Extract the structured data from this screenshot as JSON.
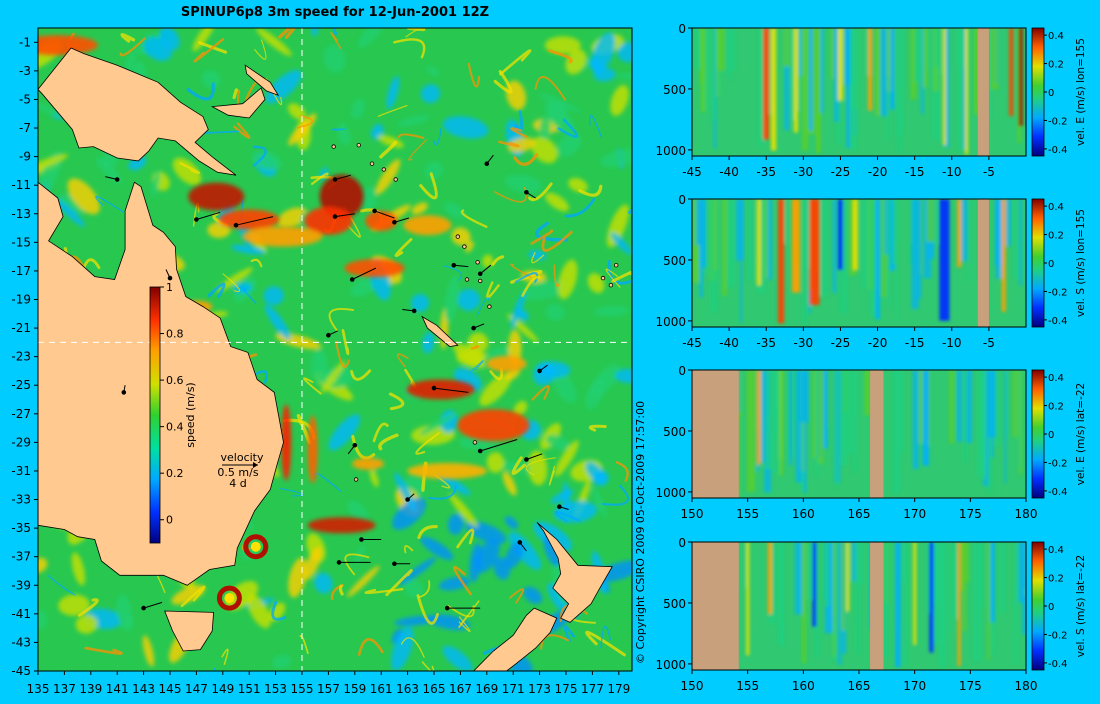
{
  "page": {
    "title": "SPINUP6p8 3m speed for 12-Jun-2001 12Z",
    "copyright": "© Copyright CSIRO 2009  05-Oct-2009 17:57:00",
    "colors": {
      "background": "#00ccff",
      "land": "#ffc98f",
      "section_land": "#c9a07c",
      "guide_lines": "#ffffff"
    }
  },
  "chart_data": [
    {
      "type": "heatmap",
      "id": "map",
      "title": "SPINUP6p8 3m speed for 12-Jun-2001 12Z",
      "x_ticks": [
        "135",
        "137",
        "139",
        "141",
        "143",
        "145",
        "147",
        "149",
        "151",
        "153",
        "155",
        "157",
        "159",
        "161",
        "163",
        "165",
        "167",
        "169",
        "171",
        "173",
        "175",
        "177",
        "179"
      ],
      "y_ticks": [
        "-1",
        "-3",
        "-5",
        "-7",
        "-9",
        "-11",
        "-13",
        "-15",
        "-17",
        "-19",
        "-21",
        "-23",
        "-25",
        "-27",
        "-29",
        "-31",
        "-33",
        "-35",
        "-37",
        "-39",
        "-41",
        "-43",
        "-45"
      ],
      "xlim": [
        135,
        180
      ],
      "ylim": [
        -45,
        0
      ],
      "colorbar": {
        "label": "speed (m/s)",
        "ticks": [
          "0",
          "0.2",
          "0.4",
          "0.6",
          "0.8",
          "1"
        ],
        "range": [
          -0.1,
          1
        ]
      },
      "velocity_key": {
        "label": "velocity",
        "value": "0.5 m/s",
        "duration": "4 d"
      },
      "section_lines": {
        "lon": 155,
        "lat": -22
      },
      "eddies": [
        {
          "lon": 151.5,
          "lat": -36.3
        },
        {
          "lon": 149.5,
          "lat": -39.9
        }
      ]
    },
    {
      "type": "heatmap",
      "id": "section1",
      "colorbar_label": "vel. E (m/s) lon=155",
      "x_ticks": [
        "-45",
        "-40",
        "-35",
        "-30",
        "-25",
        "-20",
        "-15",
        "-10",
        "-5"
      ],
      "y_ticks": [
        "0",
        "500",
        "1000"
      ],
      "xlim": [
        -45,
        0
      ],
      "ylim": [
        1050,
        0
      ],
      "colorbar_ticks": [
        "0.4",
        "0.2",
        "0",
        "-0.2",
        "-0.4"
      ],
      "range": [
        -0.45,
        0.45
      ]
    },
    {
      "type": "heatmap",
      "id": "section2",
      "colorbar_label": "vel. S (m/s) lon=155",
      "x_ticks": [
        "-45",
        "-40",
        "-35",
        "-30",
        "-25",
        "-20",
        "-15",
        "-10",
        "-5"
      ],
      "y_ticks": [
        "0",
        "500",
        "1000"
      ],
      "xlim": [
        -45,
        0
      ],
      "ylim": [
        1050,
        0
      ],
      "colorbar_ticks": [
        "0.4",
        "0.2",
        "0",
        "-0.2",
        "-0.4"
      ],
      "range": [
        -0.45,
        0.45
      ]
    },
    {
      "type": "heatmap",
      "id": "section3",
      "colorbar_label": "vel. E (m/s) lat=-22",
      "x_ticks": [
        "150",
        "155",
        "160",
        "165",
        "170",
        "175",
        "180"
      ],
      "y_ticks": [
        "0",
        "500",
        "1000"
      ],
      "xlim": [
        150,
        180
      ],
      "ylim": [
        1050,
        0
      ],
      "colorbar_ticks": [
        "0.4",
        "0.2",
        "0",
        "-0.2",
        "-0.4"
      ],
      "range": [
        -0.45,
        0.45
      ]
    },
    {
      "type": "heatmap",
      "id": "section4",
      "colorbar_label": "vel. S (m/s) lat=-22",
      "x_ticks": [
        "150",
        "155",
        "160",
        "165",
        "170",
        "175",
        "180"
      ],
      "y_ticks": [
        "0",
        "500",
        "1000"
      ],
      "xlim": [
        150,
        180
      ],
      "ylim": [
        1050,
        0
      ],
      "colorbar_ticks": [
        "0.4",
        "0.2",
        "0",
        "-0.2",
        "-0.4"
      ],
      "range": [
        -0.45,
        0.45
      ]
    }
  ]
}
